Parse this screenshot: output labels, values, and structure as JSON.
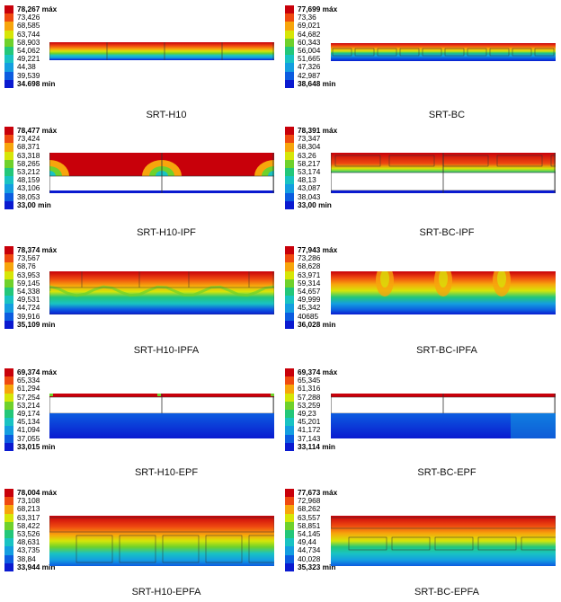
{
  "legend_colors": [
    "#c8000a",
    "#ef4a10",
    "#f7a50c",
    "#d6e608",
    "#6fd12b",
    "#23c77a",
    "#19c3c3",
    "#149ee0",
    "#0c5ce0",
    "#0a1ad0"
  ],
  "panels": [
    {
      "caption": "SRT-H10",
      "values": [
        "78,267 máx",
        "73,426",
        "68,585",
        "63,744",
        "58,903",
        "54,062",
        "49,221",
        "44,38",
        "39,539",
        "34.698 min"
      ]
    },
    {
      "caption": "SRT-BC",
      "values": [
        "77,699 máx",
        "73,36",
        "69,021",
        "64,682",
        "60,343",
        "56,004",
        "51,665",
        "47,326",
        "42,987",
        "38,648 min"
      ]
    },
    {
      "caption": "SRT-H10-IPF",
      "values": [
        "78,477 máx",
        "73,424",
        "68,371",
        "63,318",
        "58,265",
        "53,212",
        "48,159",
        "43,106",
        "38,053",
        "33,00 min"
      ]
    },
    {
      "caption": "SRT-BC-IPF",
      "values": [
        "78,391 máx",
        "73,347",
        "68,304",
        "63,26",
        "58,217",
        "53,174",
        "48,13",
        "43,087",
        "38,043",
        "33,00 min"
      ]
    },
    {
      "caption": "SRT-H10-IPFA",
      "values": [
        "78,374 máx",
        "73,567",
        "68,76",
        "63,953",
        "59,145",
        "54,338",
        "49,531",
        "44,724",
        "39,916",
        "35,109 min"
      ]
    },
    {
      "caption": "SRT-BC-IPFA",
      "values": [
        "77,943 máx",
        "73,286",
        "68,628",
        "63,971",
        "59,314",
        "54,657",
        "49,999",
        "45,342",
        "40685",
        "36,028 min"
      ]
    },
    {
      "caption": "SRT-H10-EPF",
      "values": [
        "69,374 máx",
        "65,334",
        "61,294",
        "57,254",
        "53,214",
        "49,174",
        "45,134",
        "41,094",
        "37,055",
        "33,015 min"
      ]
    },
    {
      "caption": "SRT-BC-EPF",
      "values": [
        "69,374 máx",
        "65,345",
        "61,316",
        "57,288",
        "53,259",
        "49,23",
        "45,201",
        "41,172",
        "37,143",
        "33,114 min"
      ]
    },
    {
      "caption": "SRT-H10-EPFA",
      "values": [
        "78,004 máx",
        "73,108",
        "68,213",
        "63,317",
        "58,422",
        "53,526",
        "48,631",
        "43,735",
        "38,84",
        "33,944 min"
      ]
    },
    {
      "caption": "SRT-BC-EPFA",
      "values": [
        "77,673 máx",
        "72,968",
        "68,262",
        "63,557",
        "58,851",
        "54,145",
        "49,44",
        "44,734",
        "40,028",
        "35,323 min"
      ]
    }
  ]
}
